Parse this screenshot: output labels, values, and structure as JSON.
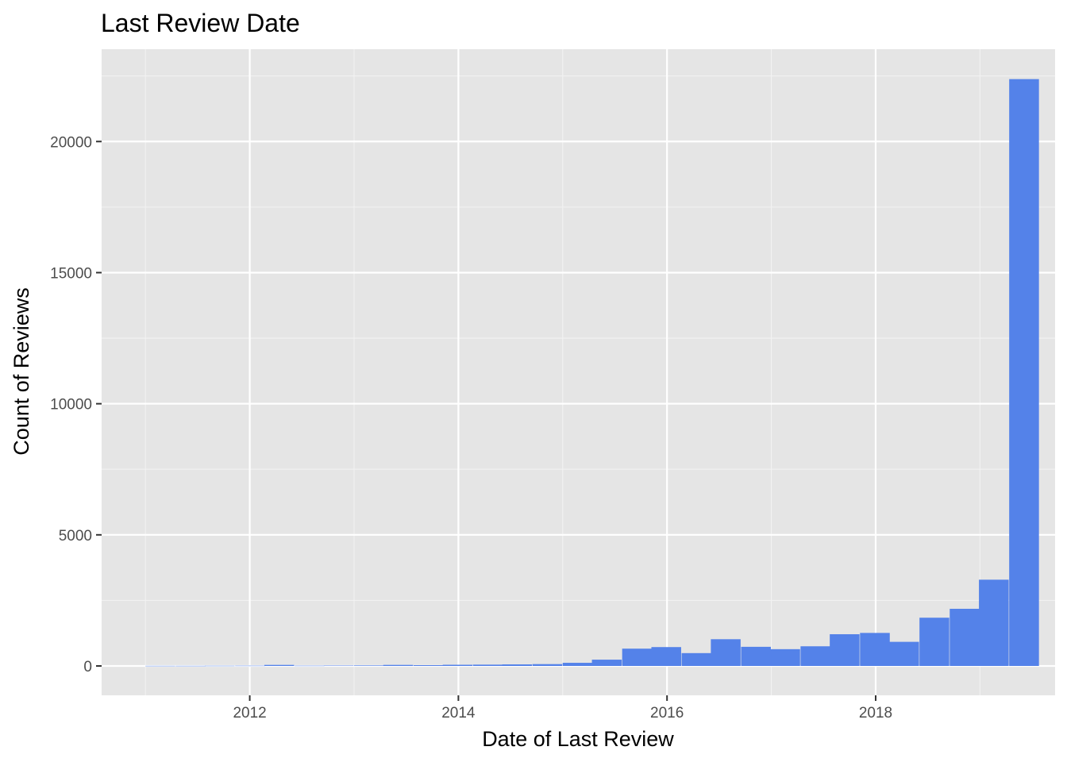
{
  "chart_data": {
    "type": "bar",
    "title": "Last Review Date",
    "xlabel": "Date of Last Review",
    "ylabel": "Count of Reviews",
    "x_ticks": [
      "2012",
      "2014",
      "2016",
      "2018"
    ],
    "y_ticks": [
      "0",
      "5000",
      "10000",
      "15000",
      "20000"
    ],
    "xlim": [
      2010.58,
      2019.72
    ],
    "ylim": [
      -1120,
      23520
    ],
    "bin_width_years": 0.2853,
    "bins_start": [
      2011.0,
      2011.29,
      2011.57,
      2011.86,
      2012.14,
      2012.43,
      2012.71,
      2013.0,
      2013.28,
      2013.57,
      2013.85,
      2014.14,
      2014.42,
      2014.71,
      2015.0,
      2015.28,
      2015.57,
      2015.85,
      2016.14,
      2016.42,
      2016.71,
      2016.99,
      2017.28,
      2017.56,
      2017.85,
      2018.13,
      2018.42,
      2018.71,
      2018.99,
      2019.28
    ],
    "values": [
      5,
      5,
      8,
      10,
      40,
      10,
      15,
      20,
      40,
      30,
      45,
      50,
      60,
      70,
      120,
      240,
      660,
      720,
      490,
      1020,
      730,
      640,
      750,
      1210,
      1260,
      920,
      1840,
      2180,
      3290,
      22380
    ],
    "grid": true,
    "legend": "none",
    "colors": {
      "bar": "#5482e9",
      "panel": "#e5e5e5",
      "grid_major": "#ffffff",
      "grid_minor": "#f2f2f2",
      "tick_label": "#4d4d4d"
    }
  }
}
